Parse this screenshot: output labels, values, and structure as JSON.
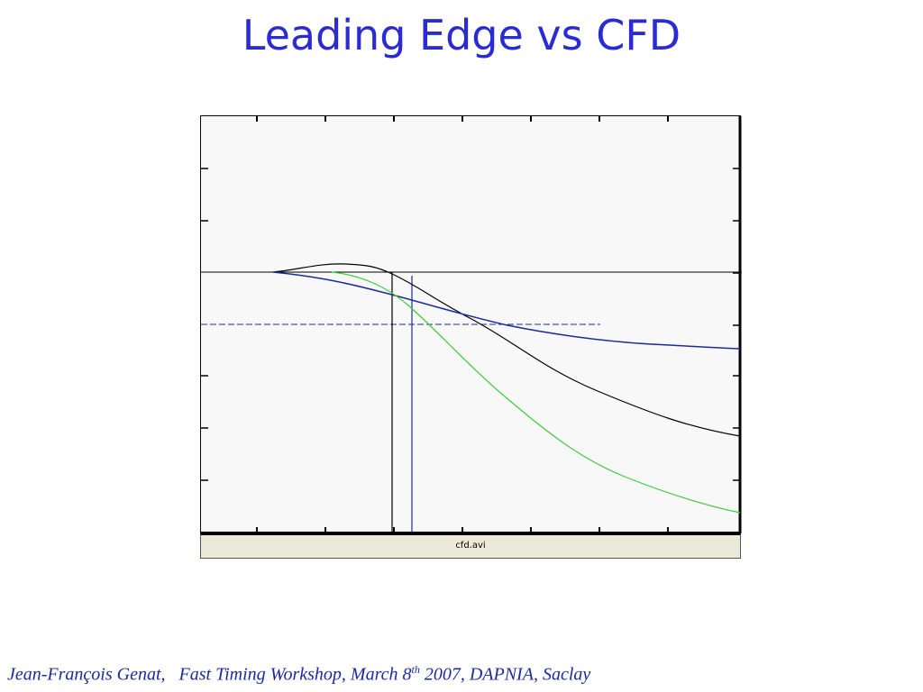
{
  "slide": {
    "title": "Leading Edge  vs  CFD",
    "file_label": "cfd.avi",
    "footer": {
      "author": "Jean-François  Genat,",
      "event_prefix": "Fast Timing Workshop, March 8",
      "event_superscript": "th",
      "event_suffix": " 2007, DAPNIA, Saclay"
    }
  },
  "colors": {
    "title": "#2b2bd6",
    "footer": "#1a2aa0",
    "black_trace": "#000000",
    "blue_trace": "#1f2a9a",
    "green_trace": "#3ccc3c",
    "status_bar": "#ece9d8"
  }
}
